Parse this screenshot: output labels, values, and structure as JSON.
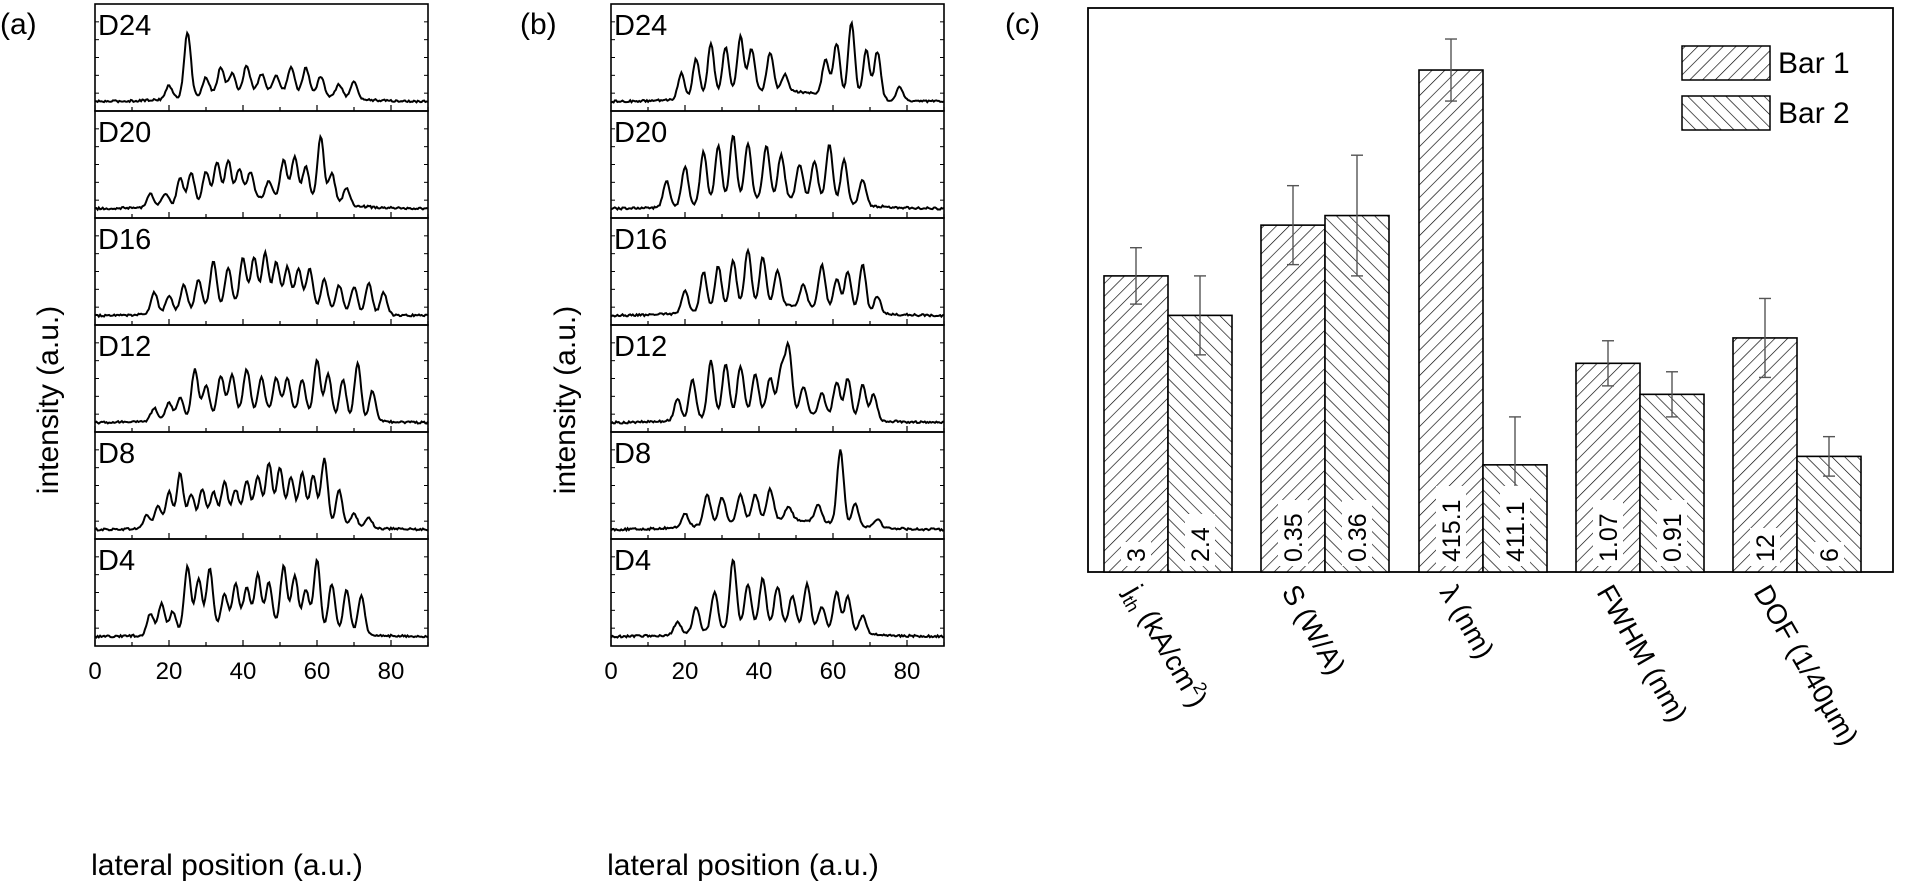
{
  "panels": {
    "a": {
      "tag": "(a)",
      "ylabel": "intensity (a.u.)",
      "xlabel": "lateral position (a.u.)"
    },
    "b": {
      "tag": "(b)",
      "ylabel": "intensity (a.u.)",
      "xlabel": "lateral position (a.u.)"
    },
    "c": {
      "tag": "(c)"
    }
  },
  "chart_data": [
    {
      "type": "line",
      "panel": "a",
      "xlim": [
        0,
        90
      ],
      "xticks": [
        0,
        20,
        40,
        60,
        80
      ],
      "xlabel": "lateral position (a.u.)",
      "ylabel": "intensity (a.u.)",
      "subplots": [
        {
          "label": "D24",
          "peaks": [
            [
              20,
              0.15
            ],
            [
              25,
              0.75
            ],
            [
              30,
              0.2
            ],
            [
              34,
              0.3
            ],
            [
              37,
              0.22
            ],
            [
              41,
              0.3
            ],
            [
              45,
              0.2
            ],
            [
              49,
              0.18
            ],
            [
              53,
              0.3
            ],
            [
              57,
              0.3
            ],
            [
              61,
              0.22
            ],
            [
              66,
              0.15
            ],
            [
              70,
              0.2
            ]
          ]
        },
        {
          "label": "D20",
          "peaks": [
            [
              15,
              0.15
            ],
            [
              19,
              0.15
            ],
            [
              23,
              0.3
            ],
            [
              26,
              0.35
            ],
            [
              30,
              0.35
            ],
            [
              33,
              0.45
            ],
            [
              36,
              0.45
            ],
            [
              39,
              0.35
            ],
            [
              42,
              0.3
            ],
            [
              47,
              0.2
            ],
            [
              51,
              0.45
            ],
            [
              54,
              0.5
            ],
            [
              57,
              0.4
            ],
            [
              61,
              0.75
            ],
            [
              64,
              0.35
            ],
            [
              68,
              0.2
            ]
          ]
        },
        {
          "label": "D16",
          "peaks": [
            [
              16,
              0.25
            ],
            [
              20,
              0.2
            ],
            [
              24,
              0.3
            ],
            [
              28,
              0.35
            ],
            [
              32,
              0.55
            ],
            [
              36,
              0.45
            ],
            [
              40,
              0.55
            ],
            [
              43,
              0.55
            ],
            [
              46,
              0.6
            ],
            [
              49,
              0.5
            ],
            [
              52,
              0.45
            ],
            [
              55,
              0.45
            ],
            [
              58,
              0.45
            ],
            [
              62,
              0.35
            ],
            [
              66,
              0.3
            ],
            [
              70,
              0.3
            ],
            [
              74,
              0.35
            ],
            [
              78,
              0.25
            ]
          ]
        },
        {
          "label": "D12",
          "peaks": [
            [
              16,
              0.15
            ],
            [
              20,
              0.2
            ],
            [
              23,
              0.25
            ],
            [
              27,
              0.55
            ],
            [
              30,
              0.35
            ],
            [
              34,
              0.45
            ],
            [
              37,
              0.45
            ],
            [
              41,
              0.5
            ],
            [
              45,
              0.4
            ],
            [
              49,
              0.4
            ],
            [
              52,
              0.4
            ],
            [
              56,
              0.4
            ],
            [
              60,
              0.65
            ],
            [
              63,
              0.5
            ],
            [
              67,
              0.45
            ],
            [
              71,
              0.65
            ],
            [
              75,
              0.35
            ]
          ]
        },
        {
          "label": "D8",
          "peaks": [
            [
              14,
              0.15
            ],
            [
              17,
              0.25
            ],
            [
              20,
              0.4
            ],
            [
              23,
              0.6
            ],
            [
              26,
              0.35
            ],
            [
              29,
              0.4
            ],
            [
              32,
              0.35
            ],
            [
              35,
              0.45
            ],
            [
              38,
              0.35
            ],
            [
              41,
              0.45
            ],
            [
              44,
              0.5
            ],
            [
              47,
              0.65
            ],
            [
              50,
              0.6
            ],
            [
              53,
              0.5
            ],
            [
              56,
              0.55
            ],
            [
              59,
              0.55
            ],
            [
              62,
              0.75
            ],
            [
              66,
              0.4
            ],
            [
              70,
              0.15
            ],
            [
              74,
              0.12
            ]
          ]
        },
        {
          "label": "D4",
          "peaks": [
            [
              15,
              0.25
            ],
            [
              18,
              0.35
            ],
            [
              21,
              0.25
            ],
            [
              25,
              0.75
            ],
            [
              28,
              0.6
            ],
            [
              31,
              0.7
            ],
            [
              35,
              0.4
            ],
            [
              38,
              0.5
            ],
            [
              41,
              0.45
            ],
            [
              44,
              0.6
            ],
            [
              47,
              0.5
            ],
            [
              51,
              0.7
            ],
            [
              54,
              0.6
            ],
            [
              57,
              0.45
            ],
            [
              60,
              0.8
            ],
            [
              64,
              0.55
            ],
            [
              68,
              0.5
            ],
            [
              72,
              0.45
            ]
          ]
        }
      ]
    },
    {
      "type": "line",
      "panel": "b",
      "xlim": [
        0,
        90
      ],
      "xticks": [
        0,
        20,
        40,
        60,
        80
      ],
      "xlabel": "lateral position (a.u.)",
      "ylabel": "intensity (a.u.)",
      "subplots": [
        {
          "label": "D24",
          "peaks": [
            [
              19,
              0.3
            ],
            [
              23,
              0.45
            ],
            [
              27,
              0.6
            ],
            [
              31,
              0.55
            ],
            [
              35,
              0.65
            ],
            [
              38,
              0.5
            ],
            [
              43,
              0.45
            ],
            [
              47,
              0.2
            ],
            [
              58,
              0.4
            ],
            [
              61,
              0.6
            ],
            [
              65,
              0.85
            ],
            [
              69,
              0.55
            ],
            [
              72,
              0.55
            ],
            [
              78,
              0.15
            ]
          ]
        },
        {
          "label": "D20",
          "peaks": [
            [
              15,
              0.3
            ],
            [
              20,
              0.45
            ],
            [
              25,
              0.6
            ],
            [
              29,
              0.65
            ],
            [
              33,
              0.75
            ],
            [
              37,
              0.65
            ],
            [
              42,
              0.6
            ],
            [
              46,
              0.5
            ],
            [
              51,
              0.4
            ],
            [
              55,
              0.45
            ],
            [
              59,
              0.65
            ],
            [
              63,
              0.5
            ],
            [
              68,
              0.3
            ]
          ]
        },
        {
          "label": "D16",
          "peaks": [
            [
              20,
              0.25
            ],
            [
              25,
              0.45
            ],
            [
              29,
              0.5
            ],
            [
              33,
              0.55
            ],
            [
              37,
              0.65
            ],
            [
              41,
              0.55
            ],
            [
              45,
              0.4
            ],
            [
              52,
              0.25
            ],
            [
              57,
              0.5
            ],
            [
              61,
              0.35
            ],
            [
              64,
              0.45
            ],
            [
              68,
              0.55
            ],
            [
              72,
              0.2
            ]
          ]
        },
        {
          "label": "D12",
          "peaks": [
            [
              18,
              0.25
            ],
            [
              22,
              0.45
            ],
            [
              27,
              0.65
            ],
            [
              31,
              0.6
            ],
            [
              35,
              0.55
            ],
            [
              39,
              0.45
            ],
            [
              43,
              0.4
            ],
            [
              46,
              0.5
            ],
            [
              48,
              0.75
            ],
            [
              52,
              0.3
            ],
            [
              57,
              0.25
            ],
            [
              61,
              0.4
            ],
            [
              64,
              0.45
            ],
            [
              68,
              0.4
            ],
            [
              71,
              0.3
            ]
          ]
        },
        {
          "label": "D8",
          "peaks": [
            [
              20,
              0.15
            ],
            [
              26,
              0.35
            ],
            [
              30,
              0.3
            ],
            [
              35,
              0.3
            ],
            [
              39,
              0.3
            ],
            [
              43,
              0.35
            ],
            [
              48,
              0.15
            ],
            [
              56,
              0.2
            ],
            [
              62,
              0.85
            ],
            [
              66,
              0.25
            ],
            [
              72,
              0.1
            ]
          ]
        },
        {
          "label": "D4",
          "peaks": [
            [
              18,
              0.15
            ],
            [
              23,
              0.3
            ],
            [
              28,
              0.45
            ],
            [
              33,
              0.8
            ],
            [
              37,
              0.5
            ],
            [
              41,
              0.55
            ],
            [
              45,
              0.45
            ],
            [
              49,
              0.35
            ],
            [
              53,
              0.5
            ],
            [
              57,
              0.25
            ],
            [
              61,
              0.45
            ],
            [
              64,
              0.4
            ],
            [
              68,
              0.2
            ]
          ]
        }
      ]
    },
    {
      "type": "bar",
      "panel": "c",
      "categories": [
        "j_th (kA/cm^2)",
        "S (W/A)",
        "λ (nm)",
        "FWHM (nm)",
        "DOF (1/40µm)"
      ],
      "category_labels": [
        {
          "main": "j",
          "sub": "th",
          "rest": " (kA/cm",
          "sup": "2",
          "end": ")"
        },
        {
          "main": "S (W/A)"
        },
        {
          "main": "λ (nm)"
        },
        {
          "main": "FWHM (nm)"
        },
        {
          "main": "DOF (1/40µm)"
        }
      ],
      "series": [
        {
          "name": "Bar 1",
          "hatch": "forward",
          "values": [
            3,
            0.35,
            415.1,
            1.07,
            12
          ],
          "labels": [
            "3",
            "0.35",
            "415.1",
            "1.07",
            "12"
          ],
          "rel_height": [
            0.525,
            0.615,
            0.89,
            0.37,
            0.415
          ],
          "err": [
            0.05,
            0.07,
            0.055,
            0.04,
            0.07
          ]
        },
        {
          "name": "Bar 2",
          "hatch": "backward",
          "values": [
            2.4,
            0.36,
            411.1,
            0.91,
            6
          ],
          "labels": [
            "2.4",
            "0.36",
            "411.1",
            "0.91",
            "6"
          ],
          "rel_height": [
            0.455,
            0.632,
            0.19,
            0.315,
            0.205
          ],
          "err": [
            0.07,
            0.107,
            0.085,
            0.04,
            0.035
          ]
        }
      ],
      "legend": {
        "position": "top-right"
      },
      "grid": false
    }
  ]
}
